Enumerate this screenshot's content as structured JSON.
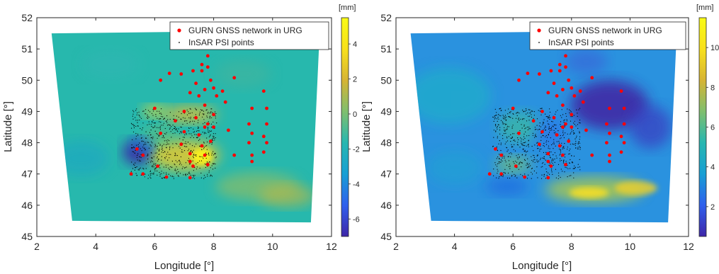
{
  "chart_data": [
    {
      "type": "scatter",
      "title": "",
      "xlabel": "Longitude [°]",
      "ylabel": "Latitude [°]",
      "xlim": [
        2,
        12
      ],
      "ylim": [
        45,
        52
      ],
      "xticks": [
        "2",
        "4",
        "6",
        "8",
        "10",
        "12"
      ],
      "yticks": [
        "45",
        "46",
        "47",
        "48",
        "49",
        "50",
        "51",
        "52"
      ],
      "grid": false,
      "legend_position": "top-right",
      "colorbar": {
        "unit": "[mm]",
        "min": -7,
        "max": 5.5,
        "ticks": [
          "4",
          "2",
          "0",
          "-2",
          "-4",
          "-6"
        ],
        "tick_values": [
          4,
          2,
          0,
          -2,
          -4,
          -6
        ],
        "colormap": [
          "#3e26a8",
          "#2f60ed",
          "#179fd4",
          "#27b7b0",
          "#7fbf6e",
          "#d6b434",
          "#f8e01c",
          "#f9fb15"
        ]
      },
      "series": [
        {
          "name": "GURN GNSS network in URG",
          "marker": "filled-circle",
          "color": "#ff0000",
          "points": [
            [
              7.8,
              50.78
            ],
            [
              7.6,
              50.5
            ],
            [
              7.8,
              50.42
            ],
            [
              6.5,
              50.22
            ],
            [
              6.9,
              50.2
            ],
            [
              7.3,
              50.3
            ],
            [
              7.6,
              50.3
            ],
            [
              6.2,
              50.0
            ],
            [
              8.7,
              50.08
            ],
            [
              7.9,
              50.0
            ],
            [
              7.4,
              49.9
            ],
            [
              7.7,
              49.7
            ],
            [
              8.0,
              49.75
            ],
            [
              8.3,
              49.65
            ],
            [
              9.7,
              49.65
            ],
            [
              7.2,
              49.6
            ],
            [
              7.5,
              49.5
            ],
            [
              8.1,
              49.5
            ],
            [
              8.4,
              49.3
            ],
            [
              7.7,
              49.2
            ],
            [
              9.3,
              49.1
            ],
            [
              9.8,
              49.1
            ],
            [
              6.0,
              49.1
            ],
            [
              7.0,
              49.0
            ],
            [
              8.0,
              48.9
            ],
            [
              6.7,
              48.7
            ],
            [
              7.4,
              48.8
            ],
            [
              7.8,
              48.6
            ],
            [
              7.7,
              48.5
            ],
            [
              8.0,
              48.5
            ],
            [
              8.5,
              48.4
            ],
            [
              9.2,
              48.6
            ],
            [
              9.8,
              48.6
            ],
            [
              6.2,
              48.3
            ],
            [
              7.0,
              48.35
            ],
            [
              7.5,
              48.25
            ],
            [
              9.3,
              48.3
            ],
            [
              9.7,
              48.2
            ],
            [
              7.9,
              48.05
            ],
            [
              9.2,
              48.0
            ],
            [
              9.8,
              48.0
            ],
            [
              6.9,
              47.95
            ],
            [
              7.6,
              47.9
            ],
            [
              5.4,
              47.8
            ],
            [
              7.2,
              47.65
            ],
            [
              5.6,
              47.6
            ],
            [
              7.7,
              47.6
            ],
            [
              9.3,
              47.6
            ],
            [
              8.7,
              47.6
            ],
            [
              9.7,
              47.7
            ],
            [
              9.3,
              47.4
            ],
            [
              7.2,
              47.4
            ],
            [
              7.8,
              47.3
            ],
            [
              6.1,
              47.25
            ],
            [
              7.3,
              47.25
            ],
            [
              5.2,
              47.0
            ],
            [
              5.6,
              47.0
            ],
            [
              6.4,
              46.9
            ],
            [
              7.2,
              46.88
            ]
          ]
        },
        {
          "name": "InSAR PSI points",
          "marker": "dot",
          "color": "#000000",
          "region": {
            "lon": [
              5.2,
              8.1
            ],
            "lat": [
              46.85,
              49.1
            ]
          }
        }
      ]
    },
    {
      "type": "scatter",
      "title": "",
      "xlabel": "Longitude [°]",
      "ylabel": "Latitude [°]",
      "xlim": [
        2,
        12
      ],
      "ylim": [
        45,
        52
      ],
      "xticks": [
        "2",
        "4",
        "6",
        "8",
        "10",
        "12"
      ],
      "yticks": [
        "45",
        "46",
        "47",
        "48",
        "49",
        "50",
        "51",
        "52"
      ],
      "grid": false,
      "legend_position": "top-right",
      "colorbar": {
        "unit": "[mm]",
        "min": 0.5,
        "max": 11.5,
        "ticks": [
          "10",
          "8",
          "6",
          "4",
          "2"
        ],
        "tick_values": [
          10,
          8,
          6,
          4,
          2
        ],
        "colormap": [
          "#3e26a8",
          "#2f60ed",
          "#179fd4",
          "#27b7b0",
          "#7fbf6e",
          "#d6b434",
          "#f8e01c",
          "#f9fb15"
        ]
      },
      "series": [
        {
          "name": "GURN GNSS network in URG",
          "marker": "filled-circle",
          "color": "#ff0000",
          "points": [
            [
              7.8,
              50.78
            ],
            [
              7.6,
              50.5
            ],
            [
              7.8,
              50.42
            ],
            [
              6.5,
              50.22
            ],
            [
              6.9,
              50.2
            ],
            [
              7.3,
              50.3
            ],
            [
              7.6,
              50.3
            ],
            [
              6.2,
              50.0
            ],
            [
              8.7,
              50.08
            ],
            [
              7.9,
              50.0
            ],
            [
              7.4,
              49.9
            ],
            [
              7.7,
              49.7
            ],
            [
              8.0,
              49.75
            ],
            [
              8.3,
              49.65
            ],
            [
              9.7,
              49.65
            ],
            [
              7.2,
              49.6
            ],
            [
              7.5,
              49.5
            ],
            [
              8.1,
              49.5
            ],
            [
              8.4,
              49.3
            ],
            [
              7.7,
              49.2
            ],
            [
              9.3,
              49.1
            ],
            [
              9.8,
              49.1
            ],
            [
              6.0,
              49.1
            ],
            [
              7.0,
              49.0
            ],
            [
              8.0,
              48.9
            ],
            [
              6.7,
              48.7
            ],
            [
              7.4,
              48.8
            ],
            [
              7.8,
              48.6
            ],
            [
              7.7,
              48.5
            ],
            [
              8.0,
              48.5
            ],
            [
              8.5,
              48.4
            ],
            [
              9.2,
              48.6
            ],
            [
              9.8,
              48.6
            ],
            [
              6.2,
              48.3
            ],
            [
              7.0,
              48.35
            ],
            [
              7.5,
              48.25
            ],
            [
              9.3,
              48.3
            ],
            [
              9.7,
              48.2
            ],
            [
              7.9,
              48.05
            ],
            [
              9.2,
              48.0
            ],
            [
              9.8,
              48.0
            ],
            [
              6.9,
              47.95
            ],
            [
              7.6,
              47.9
            ],
            [
              5.4,
              47.8
            ],
            [
              7.2,
              47.65
            ],
            [
              5.6,
              47.6
            ],
            [
              7.7,
              47.6
            ],
            [
              9.3,
              47.6
            ],
            [
              8.7,
              47.6
            ],
            [
              9.7,
              47.7
            ],
            [
              9.3,
              47.4
            ],
            [
              7.2,
              47.4
            ],
            [
              7.8,
              47.3
            ],
            [
              6.1,
              47.25
            ],
            [
              7.3,
              47.25
            ],
            [
              5.2,
              47.0
            ],
            [
              5.6,
              47.0
            ],
            [
              6.4,
              46.9
            ],
            [
              7.2,
              46.88
            ]
          ]
        },
        {
          "name": "InSAR PSI points",
          "marker": "dot",
          "color": "#000000",
          "region": {
            "lon": [
              5.3,
              8.3
            ],
            "lat": [
              46.85,
              49.1
            ]
          }
        }
      ]
    }
  ]
}
